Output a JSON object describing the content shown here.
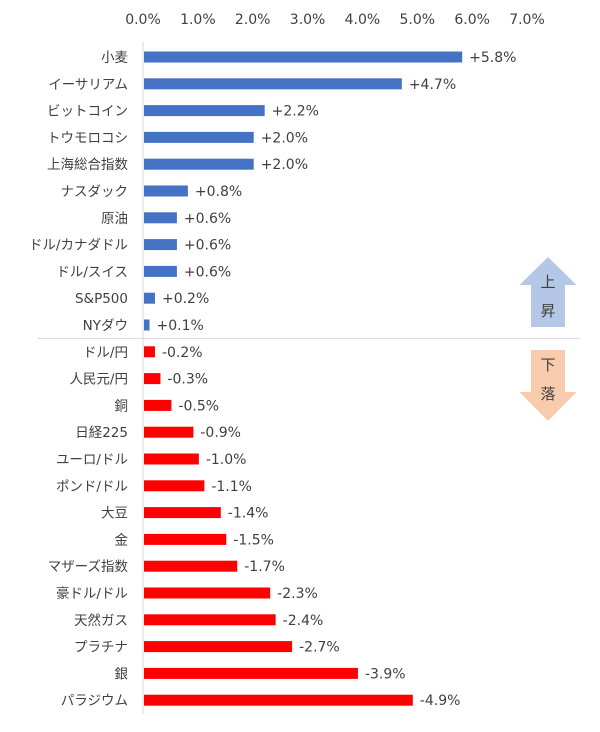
{
  "chart_data": {
    "type": "bar",
    "orientation": "horizontal",
    "title": "",
    "xlabel": "",
    "ylabel": "",
    "xlim": [
      0,
      7
    ],
    "x_ticks": [
      "0.0%",
      "1.0%",
      "2.0%",
      "3.0%",
      "4.0%",
      "5.0%",
      "6.0%",
      "7.0%"
    ],
    "x_axis_position": "top",
    "grid": false,
    "values_plotted_as": "absolute value",
    "colors": {
      "up": "#4472C4",
      "down": "#FF0000",
      "up_arrow": "#B4C7E7",
      "down_arrow": "#F8CBAD"
    },
    "groups": [
      {
        "label": "上昇",
        "arrow": "up",
        "categories": [
          "小麦",
          "イーサリアム",
          "ビットコイン",
          "トウモロコシ",
          "上海総合指数",
          "ナスダック",
          "原油",
          "ドル/カナダドル",
          "ドル/スイス",
          "S&P500",
          "NYダウ"
        ],
        "values": [
          5.8,
          4.7,
          2.2,
          2.0,
          2.0,
          0.8,
          0.6,
          0.6,
          0.6,
          0.2,
          0.1
        ],
        "labels": [
          "+5.8%",
          "+4.7%",
          "+2.2%",
          "+2.0%",
          "+2.0%",
          "+0.8%",
          "+0.6%",
          "+0.6%",
          "+0.6%",
          "+0.2%",
          "+0.1%"
        ]
      },
      {
        "label": "下落",
        "arrow": "down",
        "categories": [
          "ドル/円",
          "人民元/円",
          "銅",
          "日経225",
          "ユーロ/ドル",
          "ポンド/ドル",
          "大豆",
          "金",
          "マザーズ指数",
          "豪ドル/ドル",
          "天然ガス",
          "プラチナ",
          "銀",
          "パラジウム"
        ],
        "values": [
          -0.2,
          -0.3,
          -0.5,
          -0.9,
          -1.0,
          -1.1,
          -1.4,
          -1.5,
          -1.7,
          -2.3,
          -2.4,
          -2.7,
          -3.9,
          -4.9
        ],
        "labels": [
          "-0.2%",
          "-0.3%",
          "-0.5%",
          "-0.9%",
          "-1.0%",
          "-1.1%",
          "-1.4%",
          "-1.5%",
          "-1.7%",
          "-2.3%",
          "-2.4%",
          "-2.7%",
          "-3.9%",
          "-4.9%"
        ]
      }
    ]
  }
}
